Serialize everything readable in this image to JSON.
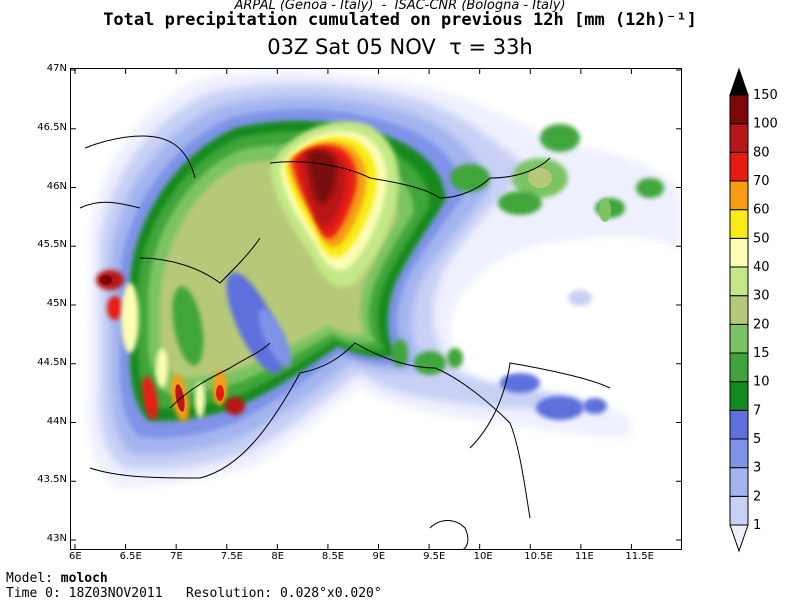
{
  "header": {
    "source_line": "ARPAL (Genoa - Italy)  -  ISAC-CNR (Bologna - Italy)",
    "title": "Total precipitation cumulated on previous 12h [mm (12h)⁻¹]",
    "valid_time": "03Z Sat 05 NOV  τ = 33h"
  },
  "axes": {
    "lat_labels": [
      "47N",
      "46.5N",
      "46N",
      "45.5N",
      "45N",
      "44.5N",
      "44N",
      "43.5N",
      "43N"
    ],
    "lat_values": [
      47,
      46.5,
      46,
      45.5,
      45,
      44.5,
      44,
      43.5,
      43
    ],
    "lon_labels": [
      "6E",
      "6.5E",
      "7E",
      "7.5E",
      "8E",
      "8.5E",
      "9E",
      "9.5E",
      "10E",
      "10.5E",
      "11E",
      "11.5E"
    ],
    "lon_values": [
      6,
      6.5,
      7,
      7.5,
      8,
      8.5,
      9,
      9.5,
      10,
      10.5,
      11,
      11.5
    ],
    "lat_range": [
      43,
      47
    ],
    "lon_range": [
      6,
      12
    ]
  },
  "legend": {
    "levels": [
      "1",
      "2",
      "3",
      "5",
      "7",
      "10",
      "15",
      "20",
      "30",
      "40",
      "50",
      "60",
      "70",
      "80",
      "100",
      "150"
    ],
    "colors": [
      "#eef0fd",
      "#c8d0f5",
      "#a3b4ef",
      "#7f93e8",
      "#5d70dc",
      "#138a1f",
      "#3fa53a",
      "#7cc463",
      "#b6c978",
      "#c4e887",
      "#fdfdb4",
      "#f8ec18",
      "#f79c14",
      "#e81b12",
      "#b71718",
      "#7a0808",
      "#000000"
    ]
  },
  "footer": {
    "model_label": "Model:",
    "model_name": "moloch",
    "time0_label": "Time 0:",
    "time0_value": "18Z03NOV2011",
    "resolution_label": "Resolution:",
    "resolution_value": "0.028°x0.020°"
  }
}
